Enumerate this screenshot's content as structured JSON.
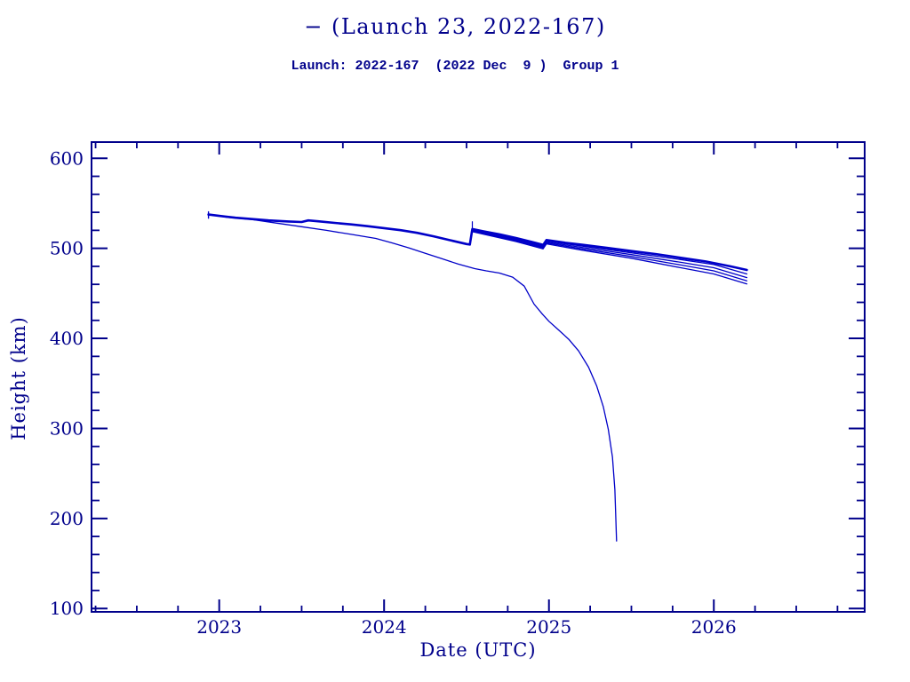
{
  "colors": {
    "text": "#00008B",
    "axis": "#00008B",
    "line": "#0000C8",
    "background": "#ffffff"
  },
  "chart_data": {
    "type": "line",
    "title": "− (Launch 23, 2022-167)",
    "subtitle": "Launch: 2022-167  (2022 Dec  9 )  Group 1",
    "xlabel": "Date (UTC)",
    "ylabel": "Height (km)",
    "xlim": [
      2022.2255,
      2026.915
    ],
    "ylim": [
      96.3,
      618.0
    ],
    "grid": false,
    "legend": "none",
    "x_major_ticks": [
      2023,
      2024,
      2025,
      2026
    ],
    "x_tick_labels": [
      "2023",
      "2024",
      "2025",
      "2026"
    ],
    "x_minor_step": 0.25,
    "y_major_ticks": [
      100,
      200,
      300,
      400,
      500,
      600
    ],
    "y_tick_labels": [
      "100",
      "200",
      "300",
      "400",
      "500",
      "600"
    ],
    "y_minor_step": 20,
    "series": [
      {
        "name": "insertion-spike",
        "width": 1.4,
        "points": [
          [
            2022.935,
            533.5
          ],
          [
            2022.935,
            540.5
          ]
        ]
      },
      {
        "name": "group-bundle",
        "width": 2.6,
        "points": [
          [
            2022.935,
            537.5
          ],
          [
            2023.0,
            536.0
          ],
          [
            2023.1,
            534.0
          ],
          [
            2023.2,
            532.5
          ],
          [
            2023.3,
            531.0
          ],
          [
            2023.42,
            529.8
          ],
          [
            2023.5,
            529.2
          ],
          [
            2023.54,
            531.0
          ],
          [
            2023.6,
            530.0
          ],
          [
            2023.7,
            528.3
          ],
          [
            2023.8,
            526.6
          ],
          [
            2023.9,
            524.6
          ],
          [
            2024.0,
            522.4
          ],
          [
            2024.1,
            520.2
          ],
          [
            2024.2,
            517.2
          ],
          [
            2024.3,
            513.4
          ],
          [
            2024.4,
            509.0
          ],
          [
            2024.5,
            504.8
          ],
          [
            2024.52,
            504.2
          ],
          [
            2024.535,
            521.5
          ],
          [
            2024.6,
            519.0
          ],
          [
            2024.7,
            515.5
          ],
          [
            2024.8,
            511.5
          ],
          [
            2024.9,
            507.0
          ],
          [
            2024.965,
            503.8
          ],
          [
            2024.985,
            509.2
          ],
          [
            2025.1,
            506.2
          ],
          [
            2025.2,
            504.0
          ],
          [
            2025.35,
            500.5
          ],
          [
            2025.5,
            497.0
          ],
          [
            2025.65,
            493.5
          ],
          [
            2025.8,
            489.5
          ],
          [
            2025.95,
            485.5
          ],
          [
            2026.1,
            480.0
          ],
          [
            2026.2,
            476.0
          ]
        ]
      },
      {
        "name": "boost-spike",
        "width": 1.2,
        "points": [
          [
            2024.535,
            520.0
          ],
          [
            2024.535,
            529.5
          ]
        ]
      },
      {
        "name": "bundle-strand-2",
        "width": 1.3,
        "points": [
          [
            2024.535,
            520.5
          ],
          [
            2024.8,
            510.5
          ],
          [
            2024.965,
            502.5
          ],
          [
            2024.985,
            508.0
          ],
          [
            2025.2,
            502.5
          ],
          [
            2025.5,
            495.0
          ],
          [
            2025.8,
            487.5
          ],
          [
            2026.0,
            482.0
          ],
          [
            2026.2,
            471.5
          ]
        ]
      },
      {
        "name": "bundle-strand-3",
        "width": 1.3,
        "points": [
          [
            2024.535,
            519.5
          ],
          [
            2024.8,
            509.5
          ],
          [
            2024.965,
            501.5
          ],
          [
            2024.985,
            507.0
          ],
          [
            2025.2,
            501.0
          ],
          [
            2025.5,
            493.0
          ],
          [
            2025.8,
            484.5
          ],
          [
            2026.0,
            478.5
          ],
          [
            2026.2,
            467.5
          ]
        ]
      },
      {
        "name": "bundle-strand-4",
        "width": 1.3,
        "points": [
          [
            2024.535,
            519.0
          ],
          [
            2024.8,
            508.5
          ],
          [
            2024.965,
            500.5
          ],
          [
            2024.985,
            506.0
          ],
          [
            2025.2,
            499.5
          ],
          [
            2025.5,
            491.0
          ],
          [
            2025.8,
            481.5
          ],
          [
            2026.0,
            475.0
          ],
          [
            2026.2,
            464.0
          ]
        ]
      },
      {
        "name": "bundle-strand-5",
        "width": 1.3,
        "points": [
          [
            2024.535,
            518.5
          ],
          [
            2024.8,
            507.5
          ],
          [
            2024.965,
            499.5
          ],
          [
            2024.985,
            505.0
          ],
          [
            2025.2,
            498.0
          ],
          [
            2025.5,
            489.0
          ],
          [
            2025.8,
            478.5
          ],
          [
            2026.0,
            471.5
          ],
          [
            2026.2,
            460.5
          ]
        ]
      },
      {
        "name": "decayed-satellite",
        "width": 1.3,
        "points": [
          [
            2022.935,
            537.5
          ],
          [
            2023.05,
            534.5
          ],
          [
            2023.2,
            532.0
          ],
          [
            2023.35,
            528.0
          ],
          [
            2023.5,
            524.0
          ],
          [
            2023.65,
            520.0
          ],
          [
            2023.8,
            515.5
          ],
          [
            2023.95,
            511.0
          ],
          [
            2024.05,
            506.0
          ],
          [
            2024.15,
            500.5
          ],
          [
            2024.25,
            494.5
          ],
          [
            2024.35,
            488.5
          ],
          [
            2024.45,
            482.5
          ],
          [
            2024.55,
            477.5
          ],
          [
            2024.62,
            475.0
          ],
          [
            2024.7,
            472.5
          ],
          [
            2024.78,
            468.0
          ],
          [
            2024.85,
            458.0
          ],
          [
            2024.91,
            438.0
          ],
          [
            2024.96,
            427.0
          ],
          [
            2025.0,
            419.0
          ],
          [
            2025.06,
            409.0
          ],
          [
            2025.12,
            399.0
          ],
          [
            2025.18,
            386.0
          ],
          [
            2025.24,
            368.0
          ],
          [
            2025.29,
            347.0
          ],
          [
            2025.33,
            324.0
          ],
          [
            2025.36,
            299.0
          ],
          [
            2025.385,
            268.0
          ],
          [
            2025.4,
            232.0
          ],
          [
            2025.41,
            175.0
          ]
        ]
      }
    ]
  }
}
